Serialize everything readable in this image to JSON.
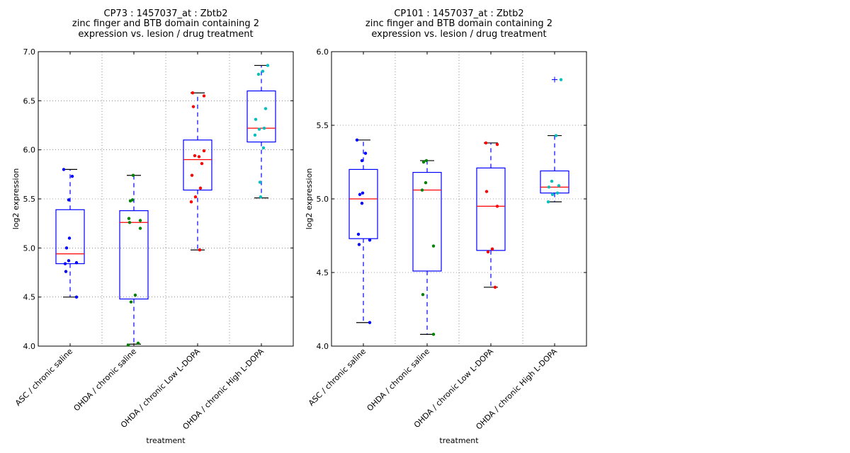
{
  "chart_data": [
    {
      "type": "boxplot",
      "title_lines": [
        "CP73 : 1457037_at : Zbtb2",
        "zinc finger and BTB domain containing 2",
        "expression vs. lesion / drug treatment"
      ],
      "xlabel": "treatment",
      "ylabel": "log2 expression",
      "ylim": [
        4.0,
        7.0
      ],
      "yticks": [
        4.0,
        4.5,
        5.0,
        5.5,
        6.0,
        6.5,
        7.0
      ],
      "ytick_labels": [
        "4.0",
        "4.5",
        "5.0",
        "5.5",
        "6.0",
        "6.5",
        "7.0"
      ],
      "grid": true,
      "categories": [
        "ASC / chronic saline",
        "OHDA / chronic saline",
        "OHDA / chronic Low L-DOPA",
        "OHDA / chronic High L-DOPA"
      ],
      "groups": [
        {
          "category": "ASC / chronic saline",
          "color": "#0000ff",
          "whisker_low": 4.5,
          "q1": 4.84,
          "median": 4.94,
          "q3": 5.39,
          "whisker_high": 5.8,
          "outliers": [],
          "points": [
            5.8,
            5.73,
            5.49,
            5.1,
            5.0,
            4.87,
            4.84,
            4.85,
            4.76,
            4.5
          ]
        },
        {
          "category": "OHDA / chronic saline",
          "color": "#008000",
          "whisker_low": 4.02,
          "q1": 4.48,
          "median": 5.26,
          "q3": 5.38,
          "whisker_high": 5.74,
          "outliers": [],
          "points": [
            5.74,
            5.48,
            5.49,
            5.3,
            5.28,
            5.26,
            5.2,
            4.52,
            4.45,
            4.03,
            4.01
          ]
        },
        {
          "category": "OHDA / chronic Low L-DOPA",
          "color": "#ff0000",
          "whisker_low": 4.98,
          "q1": 5.59,
          "median": 5.9,
          "q3": 6.1,
          "whisker_high": 6.58,
          "outliers": [],
          "points": [
            6.58,
            6.55,
            6.44,
            5.99,
            5.93,
            5.94,
            5.86,
            5.74,
            5.61,
            5.52,
            5.47,
            4.98
          ]
        },
        {
          "category": "OHDA / chronic High L-DOPA",
          "color": "#00bfbf",
          "whisker_low": 5.51,
          "q1": 6.08,
          "median": 6.22,
          "q3": 6.6,
          "whisker_high": 6.86,
          "outliers": [],
          "points": [
            6.86,
            6.8,
            6.77,
            6.42,
            6.31,
            6.22,
            6.21,
            6.15,
            6.02,
            5.67,
            5.52
          ]
        }
      ]
    },
    {
      "type": "boxplot",
      "title_lines": [
        "CP101 : 1457037_at : Zbtb2",
        "zinc finger and BTB domain containing 2",
        "expression vs. lesion / drug treatment"
      ],
      "xlabel": "treatment",
      "ylabel": "log2 expression",
      "ylim": [
        4.0,
        6.0
      ],
      "yticks": [
        4.0,
        4.5,
        5.0,
        5.5,
        6.0
      ],
      "ytick_labels": [
        "4.0",
        "4.5",
        "5.0",
        "5.5",
        "6.0"
      ],
      "grid": true,
      "categories": [
        "ASC / chronic saline",
        "OHDA / chronic saline",
        "OHDA / chronic Low L-DOPA",
        "OHDA / chronic High L-DOPA"
      ],
      "groups": [
        {
          "category": "ASC / chronic saline",
          "color": "#0000ff",
          "whisker_low": 4.16,
          "q1": 4.73,
          "median": 5.0,
          "q3": 5.2,
          "whisker_high": 5.4,
          "outliers": [],
          "points": [
            5.4,
            5.31,
            5.26,
            5.04,
            5.03,
            4.97,
            4.76,
            4.72,
            4.69,
            4.16
          ]
        },
        {
          "category": "OHDA / chronic saline",
          "color": "#008000",
          "whisker_low": 4.08,
          "q1": 4.51,
          "median": 5.06,
          "q3": 5.18,
          "whisker_high": 5.26,
          "outliers": [],
          "points": [
            5.26,
            5.25,
            5.11,
            5.06,
            4.68,
            4.35,
            4.08
          ]
        },
        {
          "category": "OHDA / chronic Low L-DOPA",
          "color": "#ff0000",
          "whisker_low": 4.4,
          "q1": 4.65,
          "median": 4.95,
          "q3": 5.21,
          "whisker_high": 5.38,
          "outliers": [],
          "points": [
            5.38,
            5.37,
            5.05,
            4.95,
            4.66,
            4.64,
            4.4
          ]
        },
        {
          "category": "OHDA / chronic High L-DOPA",
          "color": "#00bfbf",
          "whisker_low": 4.98,
          "q1": 5.04,
          "median": 5.08,
          "q3": 5.19,
          "whisker_high": 5.43,
          "outliers": [
            5.81
          ],
          "points": [
            5.81,
            5.43,
            5.12,
            5.09,
            5.08,
            5.04,
            5.03,
            4.98
          ]
        }
      ]
    }
  ]
}
